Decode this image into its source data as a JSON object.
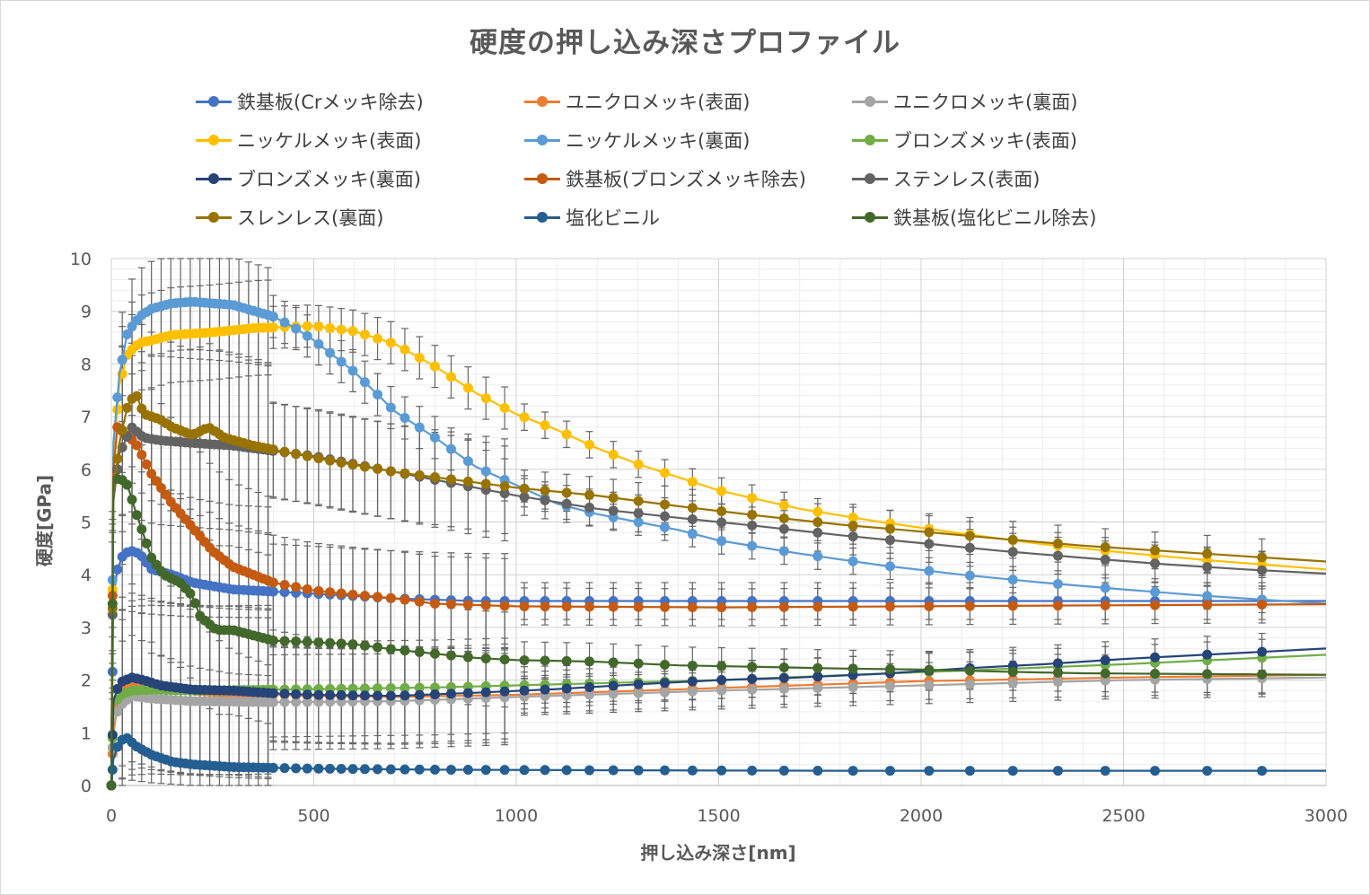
{
  "chart_data": {
    "type": "scatter",
    "title": "硬度の押し込み深さプロファイル",
    "xlabel": "押し込み深さ[nm]",
    "ylabel": "硬度[GPa]",
    "xlim": [
      0,
      3000
    ],
    "ylim": [
      0,
      10
    ],
    "xticks": [
      "0",
      "500",
      "1000",
      "1500",
      "2000",
      "2500",
      "3000"
    ],
    "yticks": [
      "0",
      "1",
      "2",
      "3",
      "4",
      "5",
      "6",
      "7",
      "8",
      "9",
      "10"
    ],
    "grid": true,
    "minor_grid": true,
    "legend_position": "top",
    "error_bars": true,
    "series": [
      {
        "name": "鉄基板(Crメッキ除去)",
        "color": "#4472C4",
        "points": [
          [
            0,
            0
          ],
          [
            5,
            3.6
          ],
          [
            15,
            4.1
          ],
          [
            30,
            4.4
          ],
          [
            50,
            4.45
          ],
          [
            70,
            4.4
          ],
          [
            100,
            4.1
          ],
          [
            150,
            4.0
          ],
          [
            200,
            3.85
          ],
          [
            300,
            3.72
          ],
          [
            400,
            3.68
          ],
          [
            500,
            3.64
          ],
          [
            700,
            3.55
          ],
          [
            900,
            3.5
          ],
          [
            1200,
            3.5
          ],
          [
            1500,
            3.5
          ],
          [
            2000,
            3.5
          ],
          [
            2500,
            3.5
          ],
          [
            3000,
            3.5
          ]
        ]
      },
      {
        "name": "ユニクロメッキ(表面)",
        "color": "#ED7D31",
        "points": [
          [
            0,
            0
          ],
          [
            5,
            1.0
          ],
          [
            15,
            1.5
          ],
          [
            30,
            1.8
          ],
          [
            60,
            1.95
          ],
          [
            100,
            1.9
          ],
          [
            200,
            1.8
          ],
          [
            300,
            1.75
          ],
          [
            500,
            1.7
          ],
          [
            700,
            1.68
          ],
          [
            1000,
            1.72
          ],
          [
            1500,
            1.85
          ],
          [
            2000,
            1.98
          ],
          [
            2500,
            2.05
          ],
          [
            3000,
            2.1
          ]
        ]
      },
      {
        "name": "ユニクロメッキ(裏面)",
        "color": "#A5A5A5",
        "points": [
          [
            0,
            0
          ],
          [
            5,
            1.2
          ],
          [
            20,
            1.5
          ],
          [
            50,
            1.7
          ],
          [
            100,
            1.65
          ],
          [
            200,
            1.6
          ],
          [
            400,
            1.58
          ],
          [
            700,
            1.6
          ],
          [
            1000,
            1.68
          ],
          [
            1500,
            1.8
          ],
          [
            2000,
            1.9
          ],
          [
            2500,
            2.0
          ],
          [
            3000,
            2.05
          ]
        ]
      },
      {
        "name": "ニッケルメッキ(表面)",
        "color": "#FFC000",
        "points": [
          [
            0,
            0
          ],
          [
            5,
            6.2
          ],
          [
            20,
            7.6
          ],
          [
            40,
            8.2
          ],
          [
            70,
            8.4
          ],
          [
            100,
            8.45
          ],
          [
            150,
            8.55
          ],
          [
            250,
            8.6
          ],
          [
            350,
            8.68
          ],
          [
            500,
            8.72
          ],
          [
            600,
            8.62
          ],
          [
            700,
            8.38
          ],
          [
            800,
            7.95
          ],
          [
            900,
            7.45
          ],
          [
            1000,
            7.05
          ],
          [
            1100,
            6.75
          ],
          [
            1200,
            6.4
          ],
          [
            1300,
            6.1
          ],
          [
            1400,
            5.85
          ],
          [
            1500,
            5.6
          ],
          [
            1700,
            5.25
          ],
          [
            1900,
            5.0
          ],
          [
            2100,
            4.78
          ],
          [
            2300,
            4.58
          ],
          [
            2500,
            4.42
          ],
          [
            2700,
            4.28
          ],
          [
            3000,
            4.1
          ]
        ]
      },
      {
        "name": "ニッケルメッキ(裏面)",
        "color": "#5B9BD5",
        "points": [
          [
            0,
            0
          ],
          [
            5,
            6.5
          ],
          [
            20,
            7.8
          ],
          [
            40,
            8.6
          ],
          [
            70,
            8.9
          ],
          [
            100,
            9.05
          ],
          [
            150,
            9.15
          ],
          [
            200,
            9.18
          ],
          [
            300,
            9.12
          ],
          [
            400,
            8.9
          ],
          [
            450,
            8.7
          ],
          [
            500,
            8.45
          ],
          [
            600,
            7.85
          ],
          [
            700,
            7.1
          ],
          [
            800,
            6.6
          ],
          [
            900,
            6.05
          ],
          [
            1000,
            5.7
          ],
          [
            1100,
            5.35
          ],
          [
            1200,
            5.15
          ],
          [
            1300,
            5.0
          ],
          [
            1400,
            4.85
          ],
          [
            1500,
            4.65
          ],
          [
            1700,
            4.4
          ],
          [
            1900,
            4.18
          ],
          [
            2100,
            4.0
          ],
          [
            2300,
            3.85
          ],
          [
            2500,
            3.72
          ],
          [
            2700,
            3.6
          ],
          [
            3000,
            3.45
          ]
        ]
      },
      {
        "name": "ブロンズメッキ(表面)",
        "color": "#70AD47",
        "points": [
          [
            0,
            0
          ],
          [
            5,
            1.5
          ],
          [
            20,
            1.7
          ],
          [
            50,
            1.8
          ],
          [
            100,
            1.82
          ],
          [
            200,
            1.8
          ],
          [
            400,
            1.82
          ],
          [
            600,
            1.84
          ],
          [
            800,
            1.86
          ],
          [
            1000,
            1.9
          ],
          [
            1500,
            2.0
          ],
          [
            2000,
            2.15
          ],
          [
            2500,
            2.3
          ],
          [
            3000,
            2.48
          ]
        ]
      },
      {
        "name": "ブロンズメッキ(裏面)",
        "color": "#264478",
        "points": [
          [
            0,
            0
          ],
          [
            5,
            1.6
          ],
          [
            20,
            1.95
          ],
          [
            50,
            2.05
          ],
          [
            80,
            2.0
          ],
          [
            120,
            1.9
          ],
          [
            200,
            1.82
          ],
          [
            300,
            1.8
          ],
          [
            400,
            1.75
          ],
          [
            500,
            1.72
          ],
          [
            700,
            1.7
          ],
          [
            900,
            1.76
          ],
          [
            1100,
            1.83
          ],
          [
            1300,
            1.92
          ],
          [
            1500,
            2.0
          ],
          [
            1700,
            2.05
          ],
          [
            1900,
            2.12
          ],
          [
            2100,
            2.22
          ],
          [
            2300,
            2.3
          ],
          [
            2500,
            2.4
          ],
          [
            2700,
            2.48
          ],
          [
            3000,
            2.6
          ]
        ]
      },
      {
        "name": "鉄基板(ブロンズメッキ除去)",
        "color": "#C55A11",
        "points": [
          [
            0,
            0
          ],
          [
            5,
            6.0
          ],
          [
            15,
            6.8
          ],
          [
            30,
            6.7
          ],
          [
            60,
            6.5
          ],
          [
            100,
            5.9
          ],
          [
            150,
            5.35
          ],
          [
            200,
            4.9
          ],
          [
            250,
            4.45
          ],
          [
            300,
            4.15
          ],
          [
            400,
            3.85
          ],
          [
            500,
            3.7
          ],
          [
            600,
            3.62
          ],
          [
            700,
            3.55
          ],
          [
            800,
            3.45
          ],
          [
            1000,
            3.4
          ],
          [
            1500,
            3.38
          ],
          [
            2000,
            3.4
          ],
          [
            2500,
            3.42
          ],
          [
            3000,
            3.44
          ]
        ]
      },
      {
        "name": "ステンレス(表面)",
        "color": "#636363",
        "points": [
          [
            0,
            0
          ],
          [
            5,
            5.4
          ],
          [
            20,
            6.3
          ],
          [
            50,
            6.8
          ],
          [
            80,
            6.6
          ],
          [
            120,
            6.55
          ],
          [
            200,
            6.5
          ],
          [
            300,
            6.45
          ],
          [
            400,
            6.35
          ],
          [
            500,
            6.25
          ],
          [
            600,
            6.1
          ],
          [
            700,
            5.95
          ],
          [
            800,
            5.8
          ],
          [
            1000,
            5.5
          ],
          [
            1200,
            5.25
          ],
          [
            1400,
            5.08
          ],
          [
            1600,
            4.92
          ],
          [
            1800,
            4.75
          ],
          [
            2000,
            4.6
          ],
          [
            2200,
            4.45
          ],
          [
            2400,
            4.32
          ],
          [
            2600,
            4.2
          ],
          [
            2800,
            4.1
          ],
          [
            3000,
            4.02
          ]
        ]
      },
      {
        "name": "スレンレス(裏面)",
        "color": "#997300",
        "points": [
          [
            0,
            0
          ],
          [
            5,
            5.6
          ],
          [
            20,
            6.5
          ],
          [
            40,
            7.2
          ],
          [
            60,
            7.45
          ],
          [
            80,
            7.05
          ],
          [
            120,
            6.95
          ],
          [
            150,
            6.8
          ],
          [
            200,
            6.65
          ],
          [
            240,
            6.8
          ],
          [
            280,
            6.6
          ],
          [
            350,
            6.45
          ],
          [
            450,
            6.3
          ],
          [
            550,
            6.15
          ],
          [
            700,
            5.95
          ],
          [
            800,
            5.85
          ],
          [
            1000,
            5.65
          ],
          [
            1200,
            5.5
          ],
          [
            1400,
            5.3
          ],
          [
            1600,
            5.12
          ],
          [
            1800,
            4.95
          ],
          [
            2000,
            4.82
          ],
          [
            2200,
            4.68
          ],
          [
            2400,
            4.55
          ],
          [
            2600,
            4.45
          ],
          [
            2800,
            4.35
          ],
          [
            3000,
            4.25
          ]
        ]
      },
      {
        "name": "塩化ビニル",
        "color": "#255E91",
        "points": [
          [
            0,
            0
          ],
          [
            5,
            0.5
          ],
          [
            20,
            0.85
          ],
          [
            40,
            0.9
          ],
          [
            60,
            0.75
          ],
          [
            100,
            0.58
          ],
          [
            150,
            0.45
          ],
          [
            200,
            0.4
          ],
          [
            300,
            0.35
          ],
          [
            500,
            0.32
          ],
          [
            800,
            0.3
          ],
          [
            1200,
            0.29
          ],
          [
            1800,
            0.28
          ],
          [
            2400,
            0.28
          ],
          [
            3000,
            0.28
          ]
        ]
      },
      {
        "name": "鉄基板(塩化ビニル除去)",
        "color": "#43682B",
        "points": [
          [
            0,
            0
          ],
          [
            5,
            5.75
          ],
          [
            20,
            5.85
          ],
          [
            40,
            5.7
          ],
          [
            60,
            5.2
          ],
          [
            80,
            4.75
          ],
          [
            100,
            4.3
          ],
          [
            130,
            4.0
          ],
          [
            170,
            3.85
          ],
          [
            200,
            3.6
          ],
          [
            220,
            3.2
          ],
          [
            260,
            2.95
          ],
          [
            300,
            2.95
          ],
          [
            350,
            2.85
          ],
          [
            400,
            2.75
          ],
          [
            500,
            2.72
          ],
          [
            600,
            2.68
          ],
          [
            700,
            2.58
          ],
          [
            900,
            2.42
          ],
          [
            1000,
            2.38
          ],
          [
            1200,
            2.35
          ],
          [
            1400,
            2.28
          ],
          [
            1600,
            2.25
          ],
          [
            1800,
            2.22
          ],
          [
            2000,
            2.2
          ],
          [
            2200,
            2.16
          ],
          [
            2400,
            2.13
          ],
          [
            2600,
            2.12
          ],
          [
            2800,
            2.11
          ],
          [
            3000,
            2.1
          ]
        ]
      }
    ]
  }
}
